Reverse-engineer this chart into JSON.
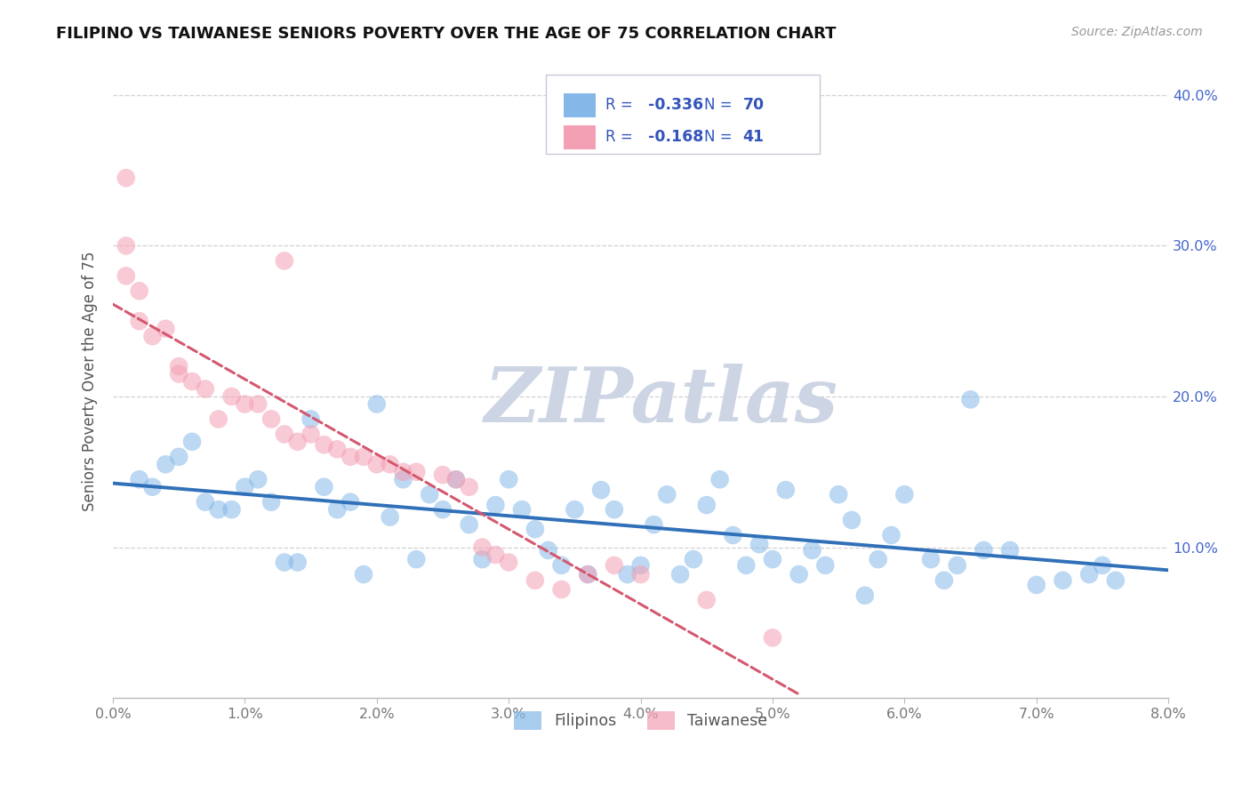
{
  "title": "FILIPINO VS TAIWANESE SENIORS POVERTY OVER THE AGE OF 75 CORRELATION CHART",
  "source": "Source: ZipAtlas.com",
  "ylabel": "Seniors Poverty Over the Age of 75",
  "xlim": [
    0.0,
    0.08
  ],
  "ylim": [
    0.0,
    0.42
  ],
  "yticks": [
    0.1,
    0.2,
    0.3,
    0.4
  ],
  "ytick_labels": [
    "10.0%",
    "20.0%",
    "30.0%",
    "40.0%"
  ],
  "xticks": [
    0.0,
    0.01,
    0.02,
    0.03,
    0.04,
    0.05,
    0.06,
    0.07,
    0.08
  ],
  "xtick_labels": [
    "0.0%",
    "1.0%",
    "2.0%",
    "3.0%",
    "4.0%",
    "5.0%",
    "6.0%",
    "7.0%",
    "8.0%"
  ],
  "grid_color": "#cccccc",
  "bg_color": "#ffffff",
  "watermark_text": "ZIPatlas",
  "watermark_color": "#cdd5e4",
  "filipino_color": "#85b8e8",
  "taiwanese_color": "#f4a0b4",
  "filipino_R": -0.336,
  "filipino_N": 70,
  "taiwanese_R": -0.168,
  "taiwanese_N": 41,
  "legend_label_filipino": "Filipinos",
  "legend_label_taiwanese": "Taiwanese",
  "filipino_line_color": "#3070b8",
  "taiwanese_line_color": "#d45870",
  "legend_text_color": "#3355bb",
  "axis_label_color": "#555555",
  "yaxis_tick_color": "#4466cc",
  "xaxis_tick_color": "#777777",
  "title_color": "#111111",
  "source_color": "#999999",
  "filipino_x": [
    0.002,
    0.003,
    0.004,
    0.005,
    0.006,
    0.007,
    0.008,
    0.009,
    0.01,
    0.011,
    0.012,
    0.013,
    0.014,
    0.015,
    0.016,
    0.017,
    0.018,
    0.019,
    0.02,
    0.021,
    0.022,
    0.023,
    0.024,
    0.025,
    0.026,
    0.027,
    0.028,
    0.029,
    0.03,
    0.031,
    0.032,
    0.033,
    0.034,
    0.035,
    0.036,
    0.037,
    0.038,
    0.039,
    0.04,
    0.041,
    0.042,
    0.043,
    0.044,
    0.045,
    0.046,
    0.047,
    0.048,
    0.049,
    0.05,
    0.051,
    0.052,
    0.053,
    0.054,
    0.055,
    0.056,
    0.057,
    0.058,
    0.059,
    0.06,
    0.062,
    0.063,
    0.064,
    0.065,
    0.066,
    0.068,
    0.07,
    0.072,
    0.074,
    0.075,
    0.076
  ],
  "filipino_y": [
    0.145,
    0.14,
    0.155,
    0.16,
    0.17,
    0.13,
    0.125,
    0.125,
    0.14,
    0.145,
    0.13,
    0.09,
    0.09,
    0.185,
    0.14,
    0.125,
    0.13,
    0.082,
    0.195,
    0.12,
    0.145,
    0.092,
    0.135,
    0.125,
    0.145,
    0.115,
    0.092,
    0.128,
    0.145,
    0.125,
    0.112,
    0.098,
    0.088,
    0.125,
    0.082,
    0.138,
    0.125,
    0.082,
    0.088,
    0.115,
    0.135,
    0.082,
    0.092,
    0.128,
    0.145,
    0.108,
    0.088,
    0.102,
    0.092,
    0.138,
    0.082,
    0.098,
    0.088,
    0.135,
    0.118,
    0.068,
    0.092,
    0.108,
    0.135,
    0.092,
    0.078,
    0.088,
    0.198,
    0.098,
    0.098,
    0.075,
    0.078,
    0.082,
    0.088,
    0.078
  ],
  "taiwanese_x": [
    0.001,
    0.001,
    0.001,
    0.002,
    0.002,
    0.003,
    0.004,
    0.005,
    0.005,
    0.006,
    0.007,
    0.008,
    0.009,
    0.01,
    0.011,
    0.012,
    0.013,
    0.013,
    0.014,
    0.015,
    0.016,
    0.017,
    0.018,
    0.019,
    0.02,
    0.021,
    0.022,
    0.023,
    0.025,
    0.026,
    0.027,
    0.028,
    0.029,
    0.03,
    0.032,
    0.034,
    0.036,
    0.038,
    0.04,
    0.045,
    0.05
  ],
  "taiwanese_y": [
    0.345,
    0.3,
    0.28,
    0.27,
    0.25,
    0.24,
    0.245,
    0.22,
    0.215,
    0.21,
    0.205,
    0.185,
    0.2,
    0.195,
    0.195,
    0.185,
    0.29,
    0.175,
    0.17,
    0.175,
    0.168,
    0.165,
    0.16,
    0.16,
    0.155,
    0.155,
    0.15,
    0.15,
    0.148,
    0.145,
    0.14,
    0.1,
    0.095,
    0.09,
    0.078,
    0.072,
    0.082,
    0.088,
    0.082,
    0.065,
    0.04
  ]
}
